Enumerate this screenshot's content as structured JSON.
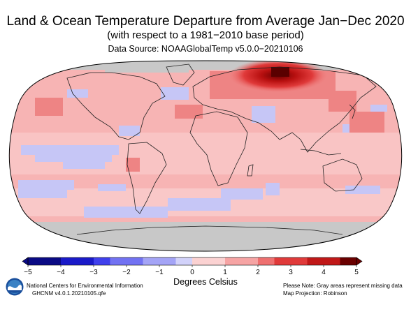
{
  "header": {
    "title": "Land & Ocean Temperature Departure from Average Jan−Dec 2020",
    "subtitle": "(with respect to a 1981−2010 base period)",
    "source": "Data Source: NOAAGlobalTemp v5.0.0−20210106"
  },
  "colorbar": {
    "ticks": [
      "−5",
      "−4",
      "−3",
      "−2",
      "−1",
      "0",
      "1",
      "2",
      "3",
      "4",
      "5"
    ],
    "label": "Degrees Celsius",
    "range": [
      -5,
      5
    ],
    "negative_colors": [
      "#0a0a84",
      "#1a1ac8",
      "#4040ec",
      "#7272f2",
      "#a4a4f6",
      "#d2d2fa"
    ],
    "positive_colors": [
      "#fbd2d2",
      "#f6a4a4",
      "#ee7070",
      "#e03a3a",
      "#c01818",
      "#6a0000"
    ]
  },
  "map": {
    "projection_note": "Robinson",
    "missing_color": "#c8c8c8",
    "regions": [
      {
        "name": "arctic",
        "anomaly": "missing"
      },
      {
        "name": "siberia",
        "anomaly": 5
      },
      {
        "name": "antarctic",
        "anomaly": "missing"
      },
      {
        "name": "southern-ocean",
        "anomaly": -0.5
      },
      {
        "name": "equatorial-pacific",
        "anomaly": -0.5
      },
      {
        "name": "tropics",
        "anomaly": 0.6
      }
    ]
  },
  "footer": {
    "left_line1": "National Centers for Environmental Information",
    "left_line2": "GHCNM v4.0.1.20210105.qfe",
    "right_line1": "Please Note: Gray areas represent missing data",
    "right_line2": "Map Projection: Robinson"
  },
  "logo": {
    "name": "NOAA"
  }
}
